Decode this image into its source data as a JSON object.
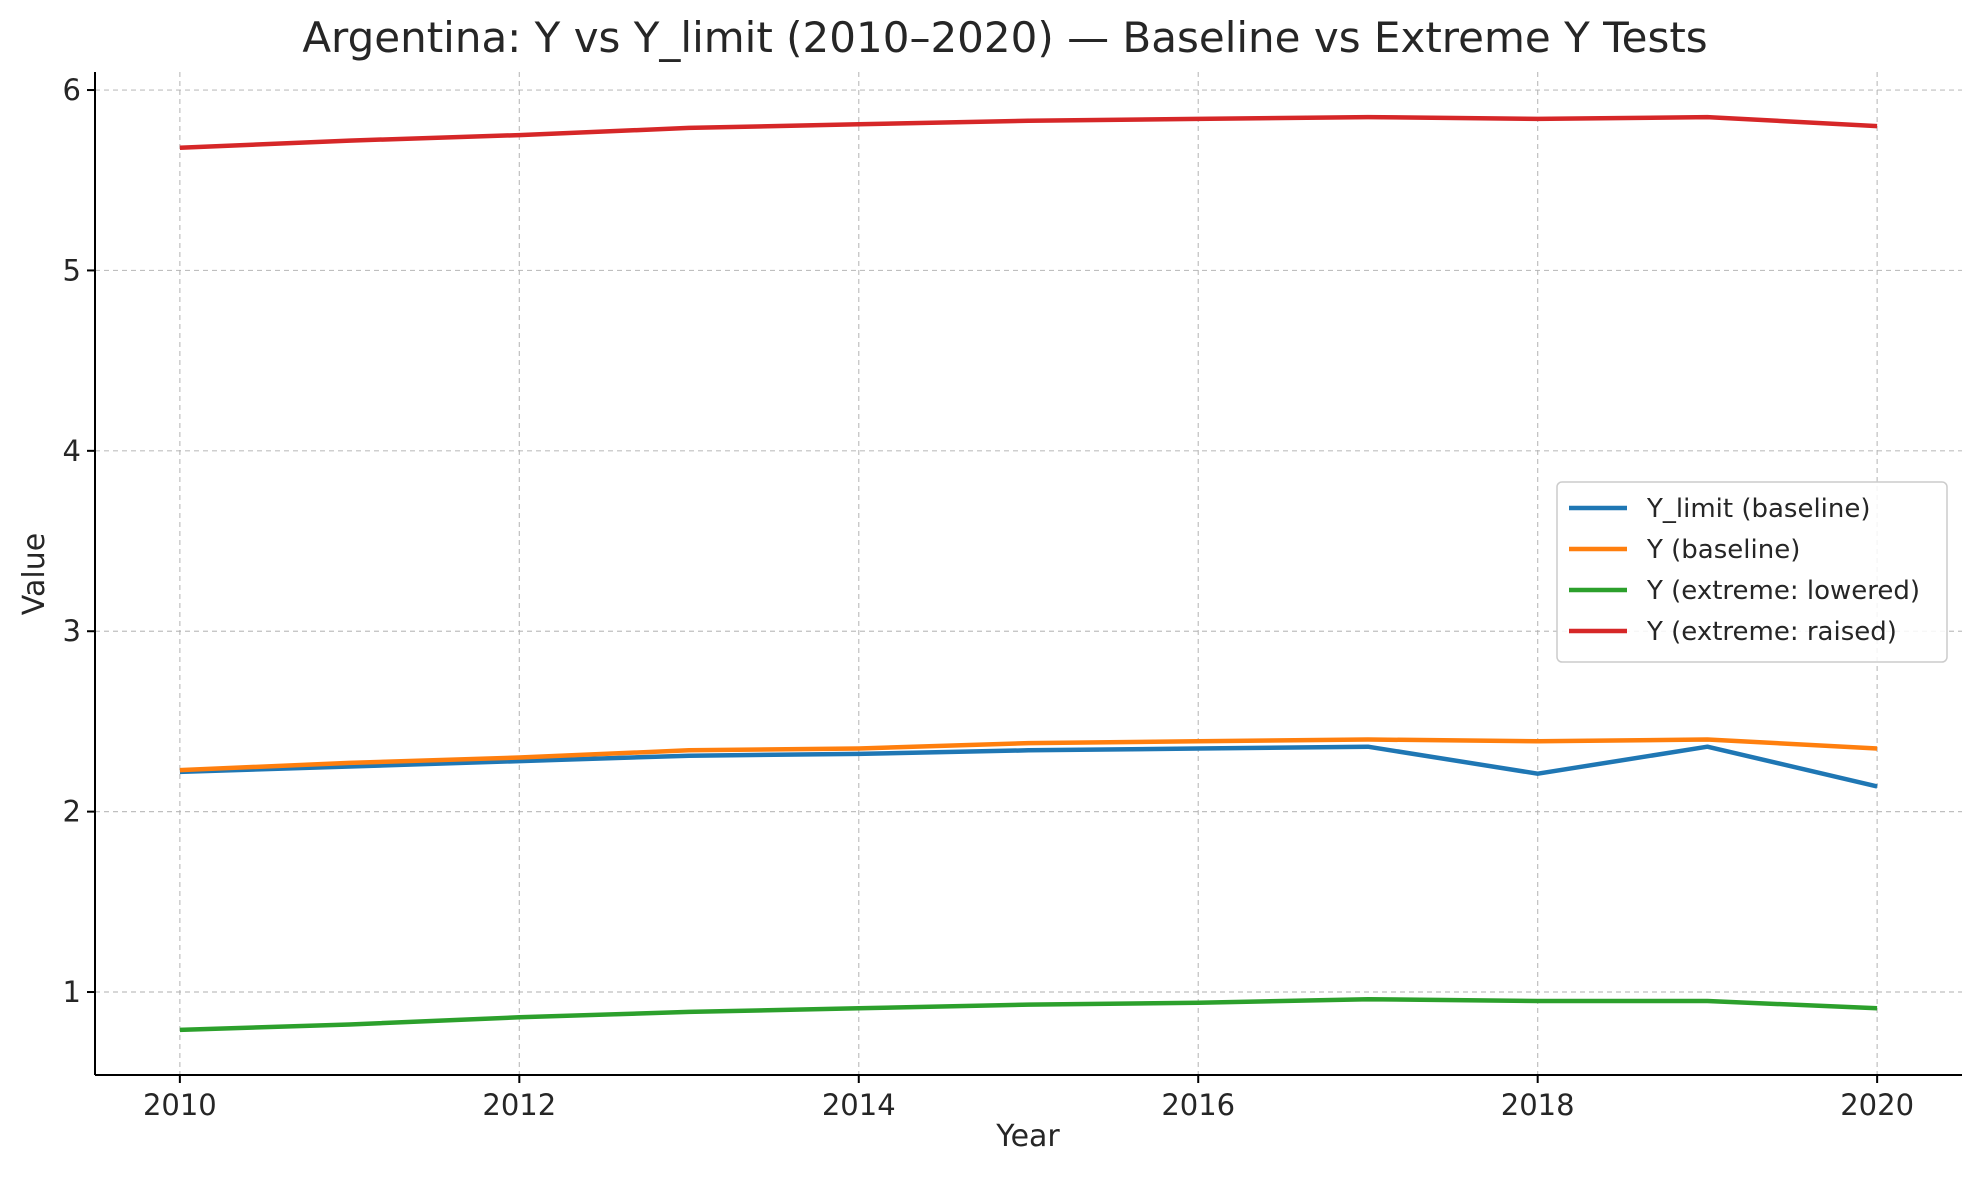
{
  "chart_data": {
    "type": "line",
    "title": "Argentina: Y vs Y_limit (2010–2020) — Baseline vs Extreme Y Tests",
    "xlabel": "Year",
    "ylabel": "Value",
    "xlim": [
      2009.5,
      2020.5
    ],
    "ylim": [
      0.54,
      6.1
    ],
    "xticks": [
      2010,
      2012,
      2014,
      2016,
      2018,
      2020
    ],
    "yticks": [
      1,
      2,
      3,
      4,
      5,
      6
    ],
    "grid": true,
    "legend_position": "center-right",
    "x": [
      2010,
      2011,
      2012,
      2013,
      2014,
      2015,
      2016,
      2017,
      2018,
      2019,
      2020
    ],
    "series": [
      {
        "name": "Y_limit (baseline)",
        "color": "#1f77b4",
        "values": [
          2.22,
          2.25,
          2.28,
          2.31,
          2.32,
          2.34,
          2.35,
          2.36,
          2.21,
          2.36,
          2.14
        ]
      },
      {
        "name": "Y (baseline)",
        "color": "#ff7f0e",
        "values": [
          2.23,
          2.27,
          2.3,
          2.34,
          2.35,
          2.38,
          2.39,
          2.4,
          2.39,
          2.4,
          2.35
        ]
      },
      {
        "name": "Y (extreme: lowered)",
        "color": "#2ca02c",
        "values": [
          0.79,
          0.82,
          0.86,
          0.89,
          0.91,
          0.93,
          0.94,
          0.96,
          0.95,
          0.95,
          0.91
        ]
      },
      {
        "name": "Y (extreme: raised)",
        "color": "#d62728",
        "values": [
          5.68,
          5.72,
          5.75,
          5.79,
          5.81,
          5.83,
          5.84,
          5.85,
          5.84,
          5.85,
          5.8
        ]
      }
    ]
  }
}
